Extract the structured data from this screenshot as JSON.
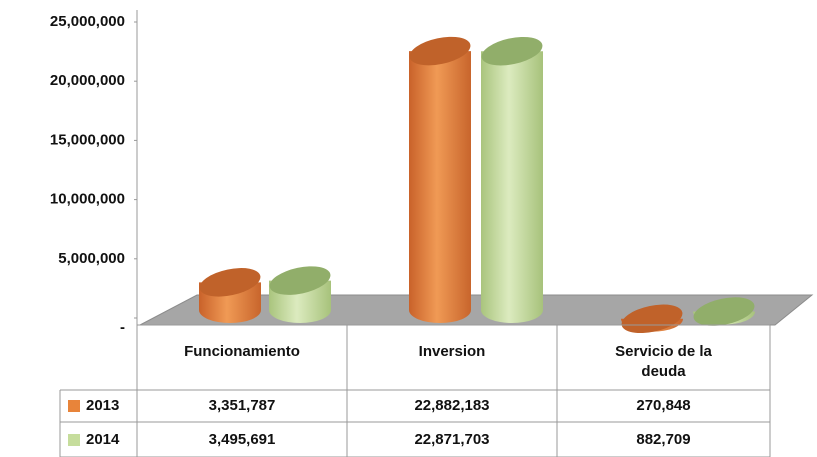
{
  "chart_data": {
    "type": "bar",
    "categories": [
      "Funcionamiento",
      "Inversion",
      "Servicio de la deuda"
    ],
    "series": [
      {
        "name": "2013",
        "color": "#e8843a",
        "values": [
          3351787,
          22882183,
          270848
        ],
        "value_labels": [
          "3,351,787",
          "22,882,183",
          "270,848"
        ]
      },
      {
        "name": "2014",
        "color": "#c6dd9c",
        "values": [
          3495691,
          22871703,
          882709
        ],
        "value_labels": [
          "3,495,691",
          "22,871,703",
          "882,709"
        ]
      }
    ],
    "ylim": [
      0,
      25000000
    ],
    "yticks": [
      {
        "value": 0,
        "label": "-"
      },
      {
        "value": 5000000,
        "label": "5,000,000"
      },
      {
        "value": 10000000,
        "label": "10,000,000"
      },
      {
        "value": 15000000,
        "label": "15,000,000"
      },
      {
        "value": 20000000,
        "label": "20,000,000"
      },
      {
        "value": 25000000,
        "label": "25,000,000"
      }
    ]
  }
}
